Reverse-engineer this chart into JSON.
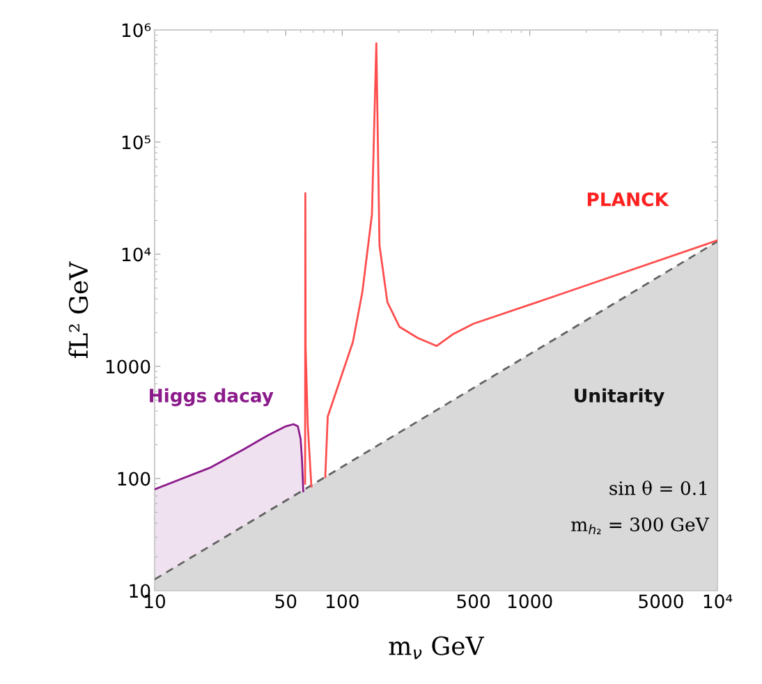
{
  "chart_data": {
    "type": "line",
    "xlabel": "m$_{ν}$ GeV",
    "ylabel": "fL² GeV",
    "log": "xy",
    "grid": false,
    "legend": false,
    "xlim": [
      10,
      10000
    ],
    "ylim": [
      10,
      1000000
    ],
    "xticks": [
      10,
      50,
      100,
      500,
      1000,
      5000,
      {
        "value": 10000,
        "label": "10⁴"
      }
    ],
    "yticks": [
      10,
      100,
      1000,
      {
        "value": 10000,
        "label": "10⁴"
      },
      {
        "value": 100000,
        "label": "10⁵"
      },
      {
        "value": 1000000,
        "label": "10⁶"
      }
    ],
    "series": [
      {
        "type": "area",
        "color": "#8b1a8b",
        "x": [
          10,
          20,
          30,
          40,
          50,
          55,
          58,
          60,
          61,
          62
        ],
        "values": [
          80,
          126,
          183,
          242,
          292,
          305,
          292,
          226,
          150,
          77
        ]
      },
      {
        "type": "area",
        "color": "#d9d9d9",
        "line_style": "dashed",
        "x": [
          10,
          10000
        ],
        "values": [
          12.6,
          13000
        ]
      },
      {
        "color": "#ff4d4d",
        "x": [
          63.4,
          63.6,
          63.8,
          65.5,
          68.5
        ],
        "values": [
          90,
          35000,
          1500,
          300,
          85
        ]
      },
      {
        "color": "#ff4d4d",
        "x": [
          81.2,
          83.7,
          97.9,
          114,
          128,
          144,
          152,
          158,
          174,
          202,
          253,
          319,
          388,
          501,
          1400,
          10000
        ],
        "values": [
          103,
          357,
          776,
          1650,
          4600,
          22600,
          760000,
          12000,
          3750,
          2250,
          1790,
          1520,
          1930,
          2400,
          4300,
          13300
        ]
      }
    ],
    "annotations": [
      "PLANCK",
      "Unitarity",
      "Higgs dacay",
      "sin θ = 0.1",
      "m$_{h₂}$ = 300 GeV"
    ]
  }
}
